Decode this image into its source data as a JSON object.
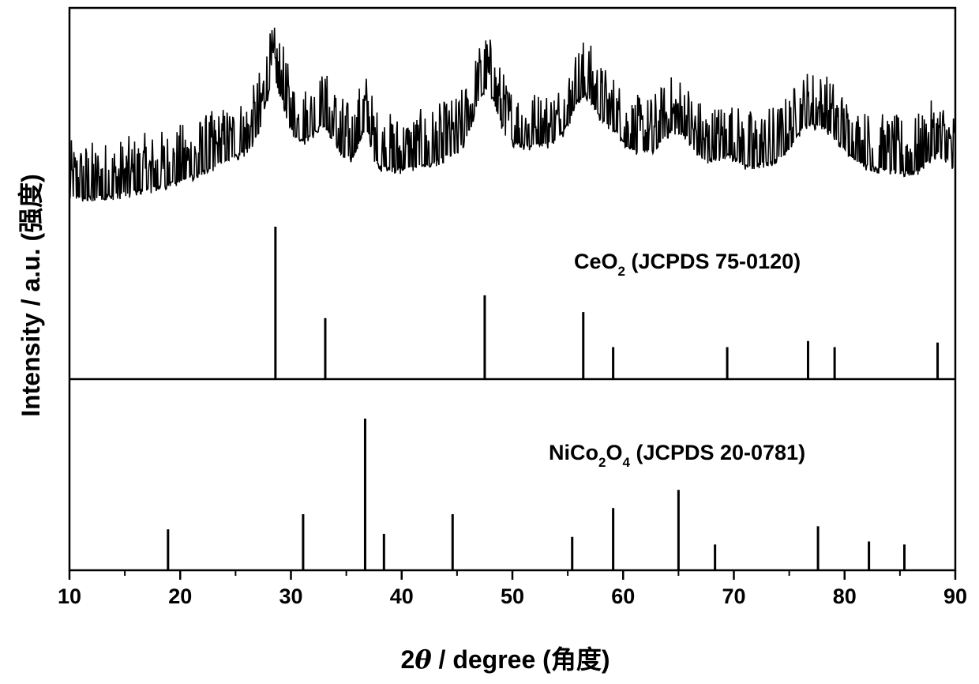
{
  "chart_data": {
    "type": "line",
    "xlabel": {
      "prefix": "2",
      "theta": "θ",
      "suffix": " / degree (角度)"
    },
    "ylabel": "Intensity / a.u. (强度)",
    "xlim": [
      10,
      90
    ],
    "xticks": [
      10,
      20,
      30,
      40,
      50,
      60,
      70,
      80,
      90
    ],
    "panels": [
      {
        "name": "sample",
        "kind": "pattern",
        "baseline": 1.0,
        "peaks": [
          {
            "center": 28.5,
            "width": 0.9,
            "height": 3.2
          },
          {
            "center": 33.0,
            "width": 1.0,
            "height": 1.3
          },
          {
            "center": 36.7,
            "width": 0.5,
            "height": 2.0
          },
          {
            "center": 47.6,
            "width": 1.0,
            "height": 2.9
          },
          {
            "center": 56.5,
            "width": 1.1,
            "height": 2.5
          },
          {
            "center": 59.0,
            "width": 0.8,
            "height": 0.8
          },
          {
            "center": 64.9,
            "width": 1.2,
            "height": 1.4
          },
          {
            "center": 69.4,
            "width": 0.8,
            "height": 0.6
          },
          {
            "center": 76.8,
            "width": 1.2,
            "height": 1.6
          },
          {
            "center": 79.0,
            "width": 1.0,
            "height": 0.9
          },
          {
            "center": 88.5,
            "width": 1.0,
            "height": 1.1
          }
        ],
        "broad_bumps": [
          {
            "center": 29.0,
            "width": 5.0,
            "height": 1.7
          },
          {
            "center": 47.5,
            "width": 3.5,
            "height": 1.5
          },
          {
            "center": 56.5,
            "width": 4.0,
            "height": 1.7
          },
          {
            "center": 77.0,
            "width": 4.0,
            "height": 1.0
          },
          {
            "center": 65.0,
            "width": 3.0,
            "height": 0.8
          }
        ],
        "rising_background": {
          "start": 13,
          "end": 28,
          "height": 1.2
        },
        "noise_amplitude": 2.3
      },
      {
        "name": "CeO2",
        "kind": "sticks",
        "label_parts": [
          {
            "text": "CeO",
            "sub": false
          },
          {
            "text": "2",
            "sub": true
          },
          {
            "text": " (JCPDS 75-0120)",
            "sub": false
          }
        ],
        "positions": [
          28.6,
          33.1,
          47.5,
          56.4,
          59.1,
          69.4,
          76.7,
          79.1,
          88.4
        ],
        "intensities": [
          100,
          40,
          55,
          44,
          21,
          21,
          25,
          21,
          24
        ]
      },
      {
        "name": "NiCo2O4",
        "kind": "sticks",
        "label_parts": [
          {
            "text": "NiCo",
            "sub": false
          },
          {
            "text": "2",
            "sub": true
          },
          {
            "text": "O",
            "sub": false
          },
          {
            "text": "4",
            "sub": true
          },
          {
            "text": " (JCPDS 20-0781)",
            "sub": false
          }
        ],
        "positions": [
          18.9,
          31.1,
          36.7,
          38.4,
          44.6,
          55.4,
          59.1,
          65.0,
          68.3,
          77.6,
          82.2,
          85.4
        ],
        "intensities": [
          27,
          37,
          100,
          24,
          37,
          22,
          41,
          53,
          17,
          29,
          19,
          17
        ]
      }
    ]
  }
}
